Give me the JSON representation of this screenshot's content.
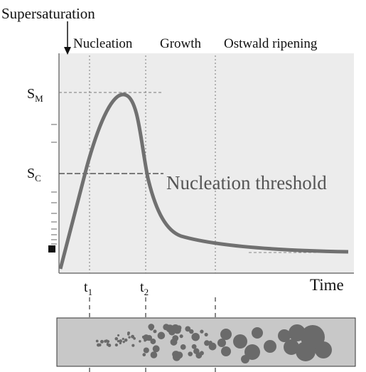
{
  "title": "Supersaturation",
  "stages": [
    "Nucleation",
    "Growth",
    "Ostwald ripening"
  ],
  "levels": {
    "max": {
      "symbol": "S",
      "subscript": "M"
    },
    "critical": {
      "symbol": "S",
      "subscript": "C"
    }
  },
  "threshold_label": "Nucleation threshold",
  "times": [
    {
      "symbol": "t",
      "subscript": "1"
    },
    {
      "symbol": "t",
      "subscript": "2"
    }
  ],
  "x_axis_label": "Time"
}
